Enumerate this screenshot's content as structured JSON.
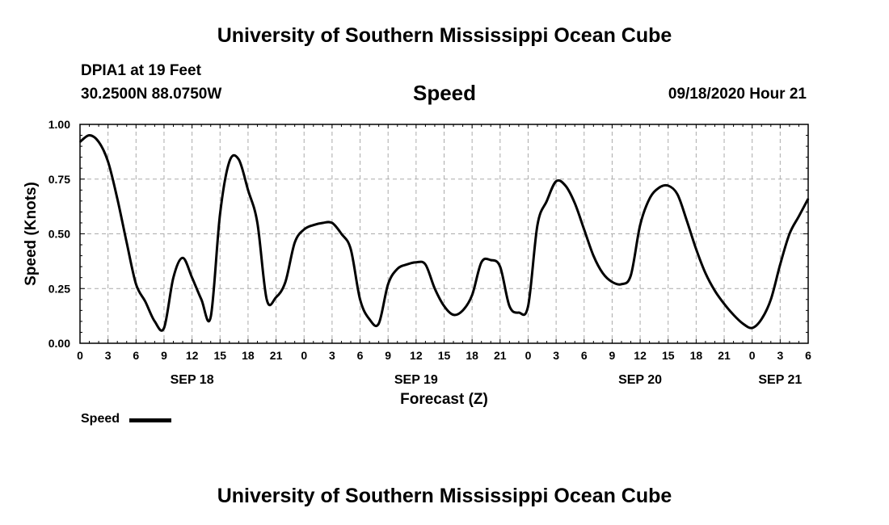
{
  "header": {
    "title": "University of Southern Mississippi Ocean Cube",
    "station": "DPIA1 at 19 Feet",
    "coords": "30.2500N 88.0750W",
    "variable": "Speed",
    "issued": "09/18/2020 Hour 21"
  },
  "footer": {
    "title": "University of Southern Mississippi Ocean Cube"
  },
  "legend": {
    "label": "Speed",
    "color": "#000000"
  },
  "chart_data": {
    "type": "line",
    "title": "Speed",
    "xlabel": "Forecast (Z)",
    "ylabel": "Speed (Knots)",
    "ylim": [
      0,
      1
    ],
    "yticks": [
      "0.00",
      "0.25",
      "0.50",
      "0.75",
      "1.00"
    ],
    "ytick_values": [
      0,
      0.25,
      0.5,
      0.75,
      1.0
    ],
    "xlim": [
      0,
      78
    ],
    "xtick_labels": [
      "0",
      "3",
      "6",
      "9",
      "12",
      "15",
      "18",
      "21",
      "0",
      "3",
      "6",
      "9",
      "12",
      "15",
      "18",
      "21",
      "0",
      "3",
      "6",
      "9",
      "12",
      "15",
      "18",
      "21",
      "0",
      "3",
      "6"
    ],
    "date_labels": [
      {
        "label": "SEP 18",
        "hour": 12
      },
      {
        "label": "SEP 19",
        "hour": 36
      },
      {
        "label": "SEP 20",
        "hour": 60
      },
      {
        "label": "SEP 21",
        "hour": 75
      }
    ],
    "grid": true,
    "series": [
      {
        "name": "Speed",
        "color": "#000000",
        "x": [
          0,
          1,
          2,
          3,
          4,
          5,
          6,
          7,
          8,
          9,
          10,
          11,
          12,
          13,
          14,
          15,
          16,
          17,
          18,
          19,
          20,
          21,
          22,
          23,
          24,
          25,
          26,
          27,
          28,
          29,
          30,
          31,
          32,
          33,
          34,
          35,
          36,
          37,
          38,
          39,
          40,
          41,
          42,
          43,
          44,
          45,
          46,
          47,
          48,
          49,
          50,
          51,
          52,
          53,
          54,
          55,
          56,
          57,
          58,
          59,
          60,
          61,
          62,
          63,
          64,
          65,
          66,
          67,
          68,
          69,
          70,
          71,
          72,
          73,
          74,
          75,
          76,
          77,
          78
        ],
        "values": [
          0.92,
          0.95,
          0.92,
          0.83,
          0.66,
          0.46,
          0.27,
          0.19,
          0.1,
          0.07,
          0.3,
          0.39,
          0.3,
          0.2,
          0.12,
          0.59,
          0.83,
          0.84,
          0.7,
          0.55,
          0.2,
          0.21,
          0.28,
          0.46,
          0.52,
          0.54,
          0.55,
          0.55,
          0.5,
          0.43,
          0.2,
          0.11,
          0.09,
          0.27,
          0.34,
          0.36,
          0.37,
          0.36,
          0.25,
          0.17,
          0.13,
          0.15,
          0.22,
          0.37,
          0.38,
          0.35,
          0.17,
          0.14,
          0.17,
          0.54,
          0.65,
          0.74,
          0.72,
          0.64,
          0.52,
          0.4,
          0.32,
          0.28,
          0.27,
          0.31,
          0.54,
          0.66,
          0.71,
          0.72,
          0.68,
          0.56,
          0.43,
          0.32,
          0.24,
          0.18,
          0.13,
          0.09,
          0.07,
          0.11,
          0.2,
          0.36,
          0.5,
          0.58,
          0.66
        ]
      }
    ]
  }
}
